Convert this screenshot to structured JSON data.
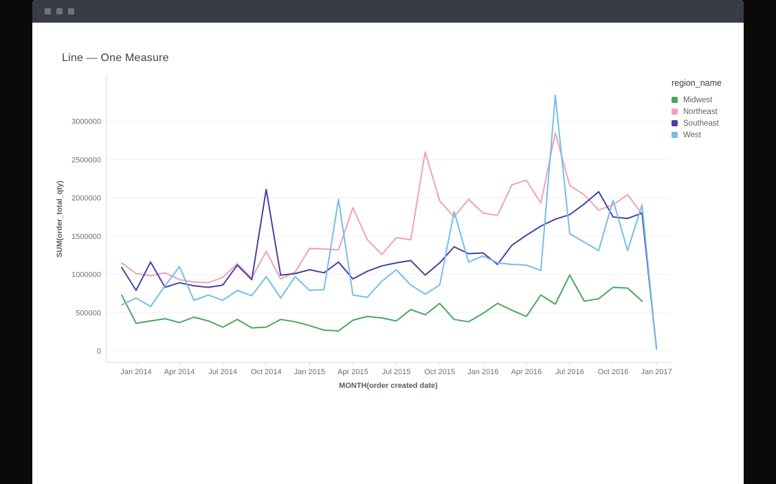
{
  "window": {
    "controls": [
      "window-dot",
      "window-dot",
      "window-dot"
    ]
  },
  "chart_data": {
    "type": "line",
    "title": "Line — One Measure",
    "xlabel": "MONTH(order created date)",
    "ylabel": "SUM(order_total_qty)",
    "legend_title": "region_name",
    "legend_position": "right",
    "grid": true,
    "ylim": [
      0,
      3600000
    ],
    "y_ticks": [
      0,
      500000,
      1000000,
      1500000,
      2000000,
      2500000,
      3000000
    ],
    "x": [
      "Dec 2013",
      "Jan 2014",
      "Feb 2014",
      "Mar 2014",
      "Apr 2014",
      "May 2014",
      "Jun 2014",
      "Jul 2014",
      "Aug 2014",
      "Sep 2014",
      "Oct 2014",
      "Nov 2014",
      "Dec 2014",
      "Jan 2015",
      "Feb 2015",
      "Mar 2015",
      "Apr 2015",
      "May 2015",
      "Jun 2015",
      "Jul 2015",
      "Aug 2015",
      "Sep 2015",
      "Oct 2015",
      "Nov 2015",
      "Dec 2015",
      "Jan 2016",
      "Feb 2016",
      "Mar 2016",
      "Apr 2016",
      "May 2016",
      "Jun 2016",
      "Jul 2016",
      "Aug 2016",
      "Sep 2016",
      "Oct 2016",
      "Nov 2016",
      "Dec 2016",
      "Jan 2017"
    ],
    "x_tick_indices": [
      1,
      4,
      7,
      10,
      13,
      16,
      19,
      22,
      25,
      28,
      31,
      34,
      37
    ],
    "series": [
      {
        "name": "Midwest",
        "color": "#4aa75c",
        "values": [
          730000,
          360000,
          390000,
          420000,
          370000,
          440000,
          390000,
          310000,
          410000,
          300000,
          310000,
          410000,
          380000,
          330000,
          270000,
          260000,
          400000,
          450000,
          430000,
          390000,
          540000,
          470000,
          620000,
          410000,
          380000,
          490000,
          620000,
          530000,
          450000,
          730000,
          610000,
          990000,
          650000,
          680000,
          830000,
          820000,
          650000,
          null
        ]
      },
      {
        "name": "Northeast",
        "color": "#f1a0bb",
        "values": [
          1150000,
          1010000,
          980000,
          1020000,
          930000,
          900000,
          890000,
          960000,
          1140000,
          950000,
          1300000,
          940000,
          1030000,
          1340000,
          1330000,
          1320000,
          1870000,
          1450000,
          1260000,
          1480000,
          1450000,
          2600000,
          1960000,
          1750000,
          1980000,
          1800000,
          1770000,
          2170000,
          2230000,
          1930000,
          2850000,
          2160000,
          2040000,
          1840000,
          1910000,
          2040000,
          1790000,
          50000
        ]
      },
      {
        "name": "Southeast",
        "color": "#4740a6",
        "values": [
          1090000,
          790000,
          1160000,
          830000,
          890000,
          850000,
          830000,
          860000,
          1120000,
          930000,
          2110000,
          990000,
          1010000,
          1060000,
          1020000,
          1160000,
          940000,
          1040000,
          1110000,
          1150000,
          1180000,
          990000,
          1150000,
          1360000,
          1270000,
          1280000,
          1130000,
          1380000,
          1510000,
          1630000,
          1720000,
          1780000,
          1920000,
          2080000,
          1750000,
          1730000,
          1800000,
          30000
        ]
      },
      {
        "name": "West",
        "color": "#74bee8",
        "values": [
          600000,
          690000,
          580000,
          850000,
          1100000,
          660000,
          730000,
          660000,
          790000,
          720000,
          970000,
          690000,
          970000,
          790000,
          800000,
          1980000,
          730000,
          700000,
          910000,
          1060000,
          860000,
          740000,
          860000,
          1820000,
          1160000,
          1240000,
          1150000,
          1130000,
          1120000,
          1050000,
          3340000,
          1530000,
          1420000,
          1310000,
          1970000,
          1310000,
          1910000,
          20000
        ]
      }
    ],
    "colors": {
      "gridline": "#eef0f2",
      "axis_spine": "#d5d8db",
      "tick_label": "#6b6f75",
      "titlebar": "#383c47"
    }
  }
}
